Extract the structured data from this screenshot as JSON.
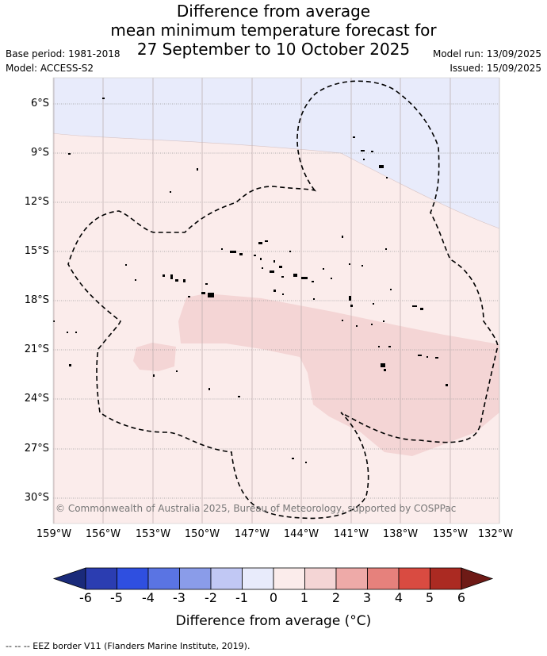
{
  "title": {
    "line1": "Difference from average",
    "line2": "mean minimum temperature forecast for",
    "line3": "27 September to 10 October 2025"
  },
  "meta": {
    "base_period": "Base period: 1981-2018",
    "model": "Model: ACCESS-S2",
    "model_run": "Model run: 13/09/2025",
    "issued": "Issued: 15/09/2025"
  },
  "map": {
    "lat_labels": [
      "6°S",
      "9°S",
      "12°S",
      "15°S",
      "18°S",
      "21°S",
      "24°S",
      "27°S",
      "30°S"
    ],
    "lon_labels": [
      "159°W",
      "156°W",
      "153°W",
      "150°W",
      "147°W",
      "144°W",
      "141°W",
      "138°W",
      "135°W",
      "132°W"
    ],
    "copyright": "© Commonwealth of Australia 2025, Bureau of Meteorology, supported by COSPPac",
    "colors": {
      "below_1": "#e8ebfb",
      "above_0_1": "#fbeceb",
      "above_1_2": "#f4d5d5",
      "eez_border": "#000000",
      "gridline": "#999999"
    }
  },
  "colorbar": {
    "labels": [
      "-6",
      "-5",
      "-4",
      "-3",
      "-2",
      "-1",
      "0",
      "1",
      "2",
      "3",
      "4",
      "5",
      "6"
    ],
    "colors": [
      "#1a2a7a",
      "#2b3db1",
      "#2f4fe0",
      "#5a74e3",
      "#8a9ce9",
      "#c1c8f4",
      "#e8ebfb",
      "#fbeceb",
      "#f4d5d5",
      "#eeaaa8",
      "#e6817c",
      "#d94b41",
      "#ab2a22",
      "#6e1a16"
    ],
    "title": "Difference from average (°C)"
  },
  "footer": "-- -- -- EEZ border V11 (Flanders Marine Institute, 2019)."
}
